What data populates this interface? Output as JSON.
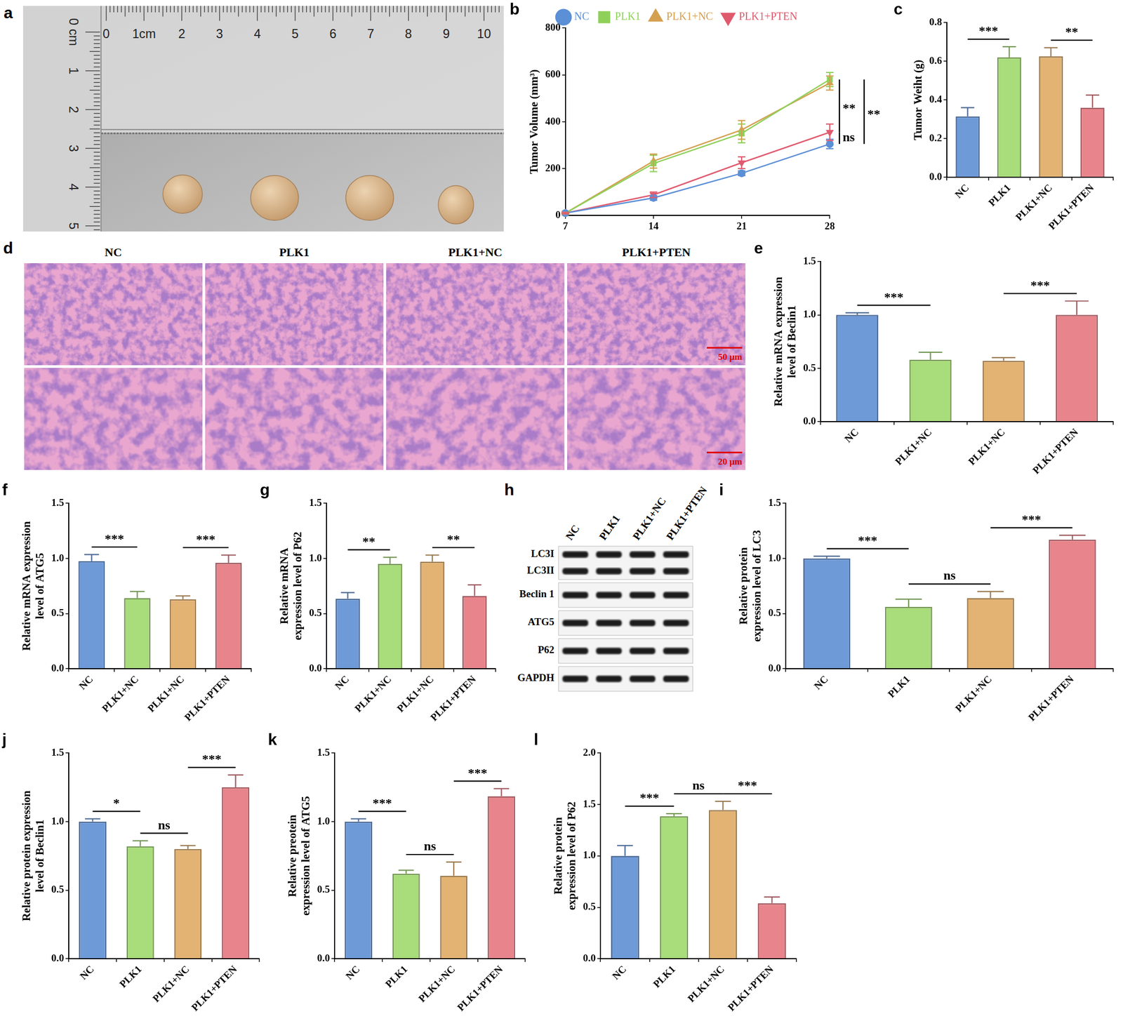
{
  "photo": {
    "panel_letter": "a",
    "ruler_top_labels": [
      "0",
      "1cm",
      "2",
      "3",
      "4",
      "5",
      "6",
      "7",
      "8",
      "9",
      "10"
    ],
    "ruler_left_labels": [
      "0 cm",
      "1",
      "2",
      "3",
      "4",
      "5"
    ]
  },
  "histology": {
    "panel_letter": "d",
    "titles": [
      "NC",
      "PLK1",
      "PLK1+NC",
      "PLK1+PTEN"
    ],
    "scale_bars": [
      "50 μm",
      "20 μm"
    ]
  },
  "blot": {
    "panel_letter": "h",
    "lanes": [
      "NC",
      "PLK1",
      "PLK1+NC",
      "PLK1+PTEN"
    ],
    "blots": [
      {
        "labels": [
          "LC3I",
          "LC3II"
        ]
      },
      {
        "labels": [
          "Beclin 1"
        ]
      },
      {
        "labels": [
          "ATG5"
        ]
      },
      {
        "labels": [
          "P62"
        ]
      },
      {
        "labels": [
          "GAPDH"
        ]
      }
    ]
  },
  "chart_data": [
    {
      "panel_letter": "b",
      "type": "line",
      "y_label": "Tumor Volume (mm³)",
      "x": [
        7,
        14,
        21,
        28
      ],
      "xlim": [
        7,
        28
      ],
      "xticks": [
        7,
        14,
        21,
        28
      ],
      "ylim": [
        0,
        800
      ],
      "yticks": [
        0,
        200,
        400,
        600,
        800
      ],
      "legend": "top",
      "grid": false,
      "series": [
        {
          "name": "NC",
          "color": "#5b8fd6",
          "marker": "circle",
          "values": [
            10,
            75,
            180,
            305
          ],
          "errors": [
            3,
            10,
            10,
            20
          ]
        },
        {
          "name": "PLK1",
          "color": "#8fd05a",
          "marker": "square",
          "values": [
            10,
            222,
            350,
            580
          ],
          "errors": [
            3,
            35,
            40,
            30
          ]
        },
        {
          "name": "PLK1+NC",
          "color": "#d4a050",
          "marker": "triangle",
          "values": [
            10,
            232,
            365,
            565
          ],
          "errors": [
            3,
            30,
            40,
            30
          ]
        },
        {
          "name": "PLK1+PTEN",
          "color": "#e05a6e",
          "marker": "triangle-down",
          "values": [
            10,
            88,
            225,
            355
          ],
          "errors": [
            3,
            12,
            25,
            35
          ]
        }
      ],
      "annotations": [
        {
          "between": [
            "PLK1",
            "PLK1+PTEN"
          ],
          "label": "**"
        },
        {
          "between": [
            "PLK1",
            "NC"
          ],
          "label": "**"
        },
        {
          "between": [
            "PLK1+PTEN",
            "NC"
          ],
          "label": "ns"
        }
      ]
    },
    {
      "panel_letter": "c",
      "type": "bar",
      "y_label": "Tumor Weiht (g)",
      "categories": [
        "NC",
        "PLK1",
        "PLK1+NC",
        "PLK1+PTEN"
      ],
      "values": [
        0.315,
        0.62,
        0.625,
        0.36
      ],
      "errors": [
        0.045,
        0.055,
        0.045,
        0.065
      ],
      "colors": [
        "#6f9ad8",
        "#a9dc7a",
        "#e3b374",
        "#e8858c"
      ],
      "ylim": [
        0,
        0.8
      ],
      "yticks": [
        {
          "value": 0,
          "label": "0.0"
        },
        0.2,
        0.4,
        0.6,
        0.8
      ],
      "grid": false,
      "annotations": [
        {
          "between": [
            0,
            1
          ],
          "label": "***"
        },
        {
          "between": [
            2,
            3
          ],
          "label": "**"
        }
      ]
    },
    {
      "panel_letter": "e",
      "type": "bar",
      "y_label": "Relative mRNA expression level of Beclin1",
      "categories": [
        "NC",
        "PLK1+NC",
        "PLK1+NC",
        "PLK1+PTEN"
      ],
      "values": [
        1.0,
        0.58,
        0.57,
        1.0
      ],
      "errors": [
        0.02,
        0.07,
        0.03,
        0.13
      ],
      "colors": [
        "#6f9ad8",
        "#a9dc7a",
        "#e3b374",
        "#e8858c"
      ],
      "ylim": [
        0,
        1.5
      ],
      "yticks": [
        {
          "value": 0,
          "label": "0.0"
        },
        0.5,
        {
          "value": 1,
          "label": "1.0"
        },
        1.5
      ],
      "grid": false,
      "annotations": [
        {
          "between": [
            0,
            1
          ],
          "label": "***"
        },
        {
          "between": [
            2,
            3
          ],
          "label": "***"
        }
      ]
    },
    {
      "panel_letter": "f",
      "type": "bar",
      "y_label": "Relative mRNA expression level of ATG5",
      "categories": [
        "NC",
        "PLK1+NC",
        "PLK1+NC",
        "PLK1+PTEN"
      ],
      "values": [
        0.975,
        0.64,
        0.63,
        0.96
      ],
      "errors": [
        0.06,
        0.06,
        0.03,
        0.07
      ],
      "colors": [
        "#6f9ad8",
        "#a9dc7a",
        "#e3b374",
        "#e8858c"
      ],
      "ylim": [
        0,
        1.5
      ],
      "yticks": [
        {
          "value": 0,
          "label": "0.0"
        },
        0.5,
        {
          "value": 1,
          "label": "1.0"
        },
        1.5
      ],
      "grid": false,
      "annotations": [
        {
          "between": [
            0,
            1
          ],
          "label": "***"
        },
        {
          "between": [
            2,
            3
          ],
          "label": "***"
        }
      ]
    },
    {
      "panel_letter": "g",
      "type": "bar",
      "y_label": "Relative mRNA expression level of P62",
      "categories": [
        "NC",
        "PLK1+NC",
        "PLK1+NC",
        "PLK1+PTEN"
      ],
      "values": [
        0.635,
        0.95,
        0.97,
        0.66
      ],
      "errors": [
        0.055,
        0.06,
        0.06,
        0.1
      ],
      "colors": [
        "#6f9ad8",
        "#a9dc7a",
        "#e3b374",
        "#e8858c"
      ],
      "ylim": [
        0,
        1.5
      ],
      "yticks": [
        {
          "value": 0,
          "label": "0.0"
        },
        0.5,
        {
          "value": 1,
          "label": "1.0"
        },
        1.5
      ],
      "grid": false,
      "annotations": [
        {
          "between": [
            0,
            1
          ],
          "label": "**"
        },
        {
          "between": [
            2,
            3
          ],
          "label": "**"
        }
      ]
    },
    {
      "panel_letter": "i",
      "type": "bar",
      "y_label": "Relative protein expression level of LC3",
      "categories": [
        "NC",
        "PLK1",
        "PLK1+NC",
        "PLK1+PTEN"
      ],
      "values": [
        1.0,
        0.56,
        0.64,
        1.17
      ],
      "errors": [
        0.02,
        0.07,
        0.06,
        0.04
      ],
      "colors": [
        "#6f9ad8",
        "#a9dc7a",
        "#e3b374",
        "#e8858c"
      ],
      "ylim": [
        0,
        1.5
      ],
      "yticks": [
        {
          "value": 0,
          "label": "0.0"
        },
        0.5,
        {
          "value": 1,
          "label": "1.0"
        },
        1.5
      ],
      "grid": false,
      "annotations": [
        {
          "between": [
            0,
            1
          ],
          "label": "***"
        },
        {
          "between": [
            1,
            2
          ],
          "label": "ns"
        },
        {
          "between": [
            2,
            3
          ],
          "label": "***"
        }
      ]
    },
    {
      "panel_letter": "j",
      "type": "bar",
      "y_label": "Relative protein expression level of Beclin1",
      "categories": [
        "NC",
        "PLK1",
        "PLK1+NC",
        "PLK1+PTEN"
      ],
      "values": [
        1.0,
        0.82,
        0.8,
        1.25
      ],
      "errors": [
        0.02,
        0.04,
        0.025,
        0.09
      ],
      "colors": [
        "#6f9ad8",
        "#a9dc7a",
        "#e3b374",
        "#e8858c"
      ],
      "ylim": [
        0,
        1.5
      ],
      "yticks": [
        {
          "value": 0,
          "label": "0.0"
        },
        0.5,
        {
          "value": 1,
          "label": "1.0"
        },
        1.5
      ],
      "grid": false,
      "annotations": [
        {
          "between": [
            0,
            1
          ],
          "label": "*"
        },
        {
          "between": [
            1,
            2
          ],
          "label": "ns"
        },
        {
          "between": [
            2,
            3
          ],
          "label": "***"
        }
      ]
    },
    {
      "panel_letter": "k",
      "type": "bar",
      "y_label": "Relative preotein expression level of ATG5",
      "categories": [
        "NC",
        "PLK1",
        "PLK1+NC",
        "PLK1+PTEN"
      ],
      "values": [
        1.0,
        0.62,
        0.605,
        1.185
      ],
      "errors": [
        0.02,
        0.025,
        0.1,
        0.055
      ],
      "colors": [
        "#6f9ad8",
        "#a9dc7a",
        "#e3b374",
        "#e8858c"
      ],
      "ylim": [
        0,
        1.5
      ],
      "yticks": [
        {
          "value": 0,
          "label": "0.0"
        },
        0.5,
        {
          "value": 1,
          "label": "1.0"
        },
        1.5
      ],
      "grid": false,
      "annotations": [
        {
          "between": [
            0,
            1
          ],
          "label": "***"
        },
        {
          "between": [
            1,
            2
          ],
          "label": "ns"
        },
        {
          "between": [
            2,
            3
          ],
          "label": "***"
        }
      ]
    },
    {
      "panel_letter": "l",
      "type": "bar",
      "y_label": "Relative protein expression level of P62",
      "categories": [
        "NC",
        "PLK1",
        "PLK1+NC",
        "PLK1+PTEN"
      ],
      "values": [
        1.0,
        1.385,
        1.445,
        0.54
      ],
      "errors": [
        0.1,
        0.025,
        0.085,
        0.06
      ],
      "colors": [
        "#6f9ad8",
        "#a9dc7a",
        "#e3b374",
        "#e8858c"
      ],
      "ylim": [
        0,
        2
      ],
      "yticks": [
        {
          "value": 0,
          "label": "0.0"
        },
        0.5,
        {
          "value": 1,
          "label": "1.0"
        },
        1.5,
        {
          "value": 2,
          "label": "2.0"
        }
      ],
      "grid": false,
      "annotations": [
        {
          "between": [
            0,
            1
          ],
          "label": "***"
        },
        {
          "between": [
            1,
            2
          ],
          "label": "ns"
        },
        {
          "between": [
            2,
            3
          ],
          "label": "***"
        }
      ]
    }
  ]
}
